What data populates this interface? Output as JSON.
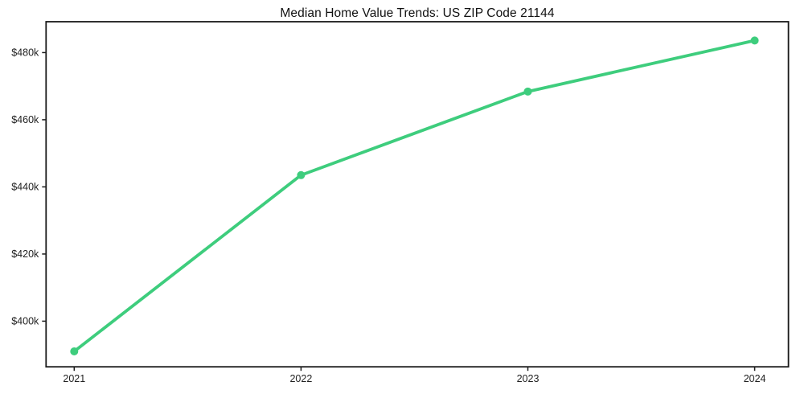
{
  "chart_data": {
    "type": "line",
    "title": "Median Home Value Trends: US ZIP Code 21144",
    "x": [
      2021,
      2022,
      2023,
      2024
    ],
    "xtick_labels": [
      "2021",
      "2022",
      "2023",
      "2024"
    ],
    "yticks": [
      400000,
      420000,
      440000,
      460000,
      480000
    ],
    "ytick_labels": [
      "$400k",
      "$420k",
      "$440k",
      "$460k",
      "$480k"
    ],
    "ylim": [
      386400,
      489200
    ],
    "grid": false,
    "legend": "none",
    "series": [
      {
        "name": "Median Home Value",
        "values": [
          391000,
          443500,
          468400,
          483600
        ],
        "color": "#3ecd7d",
        "marker": "circle"
      }
    ],
    "colors": {
      "line": "#3ecd7d",
      "axis": "#1a1a1a",
      "tick_text": "#222222",
      "title_text": "#111111",
      "background": "#ffffff"
    }
  }
}
